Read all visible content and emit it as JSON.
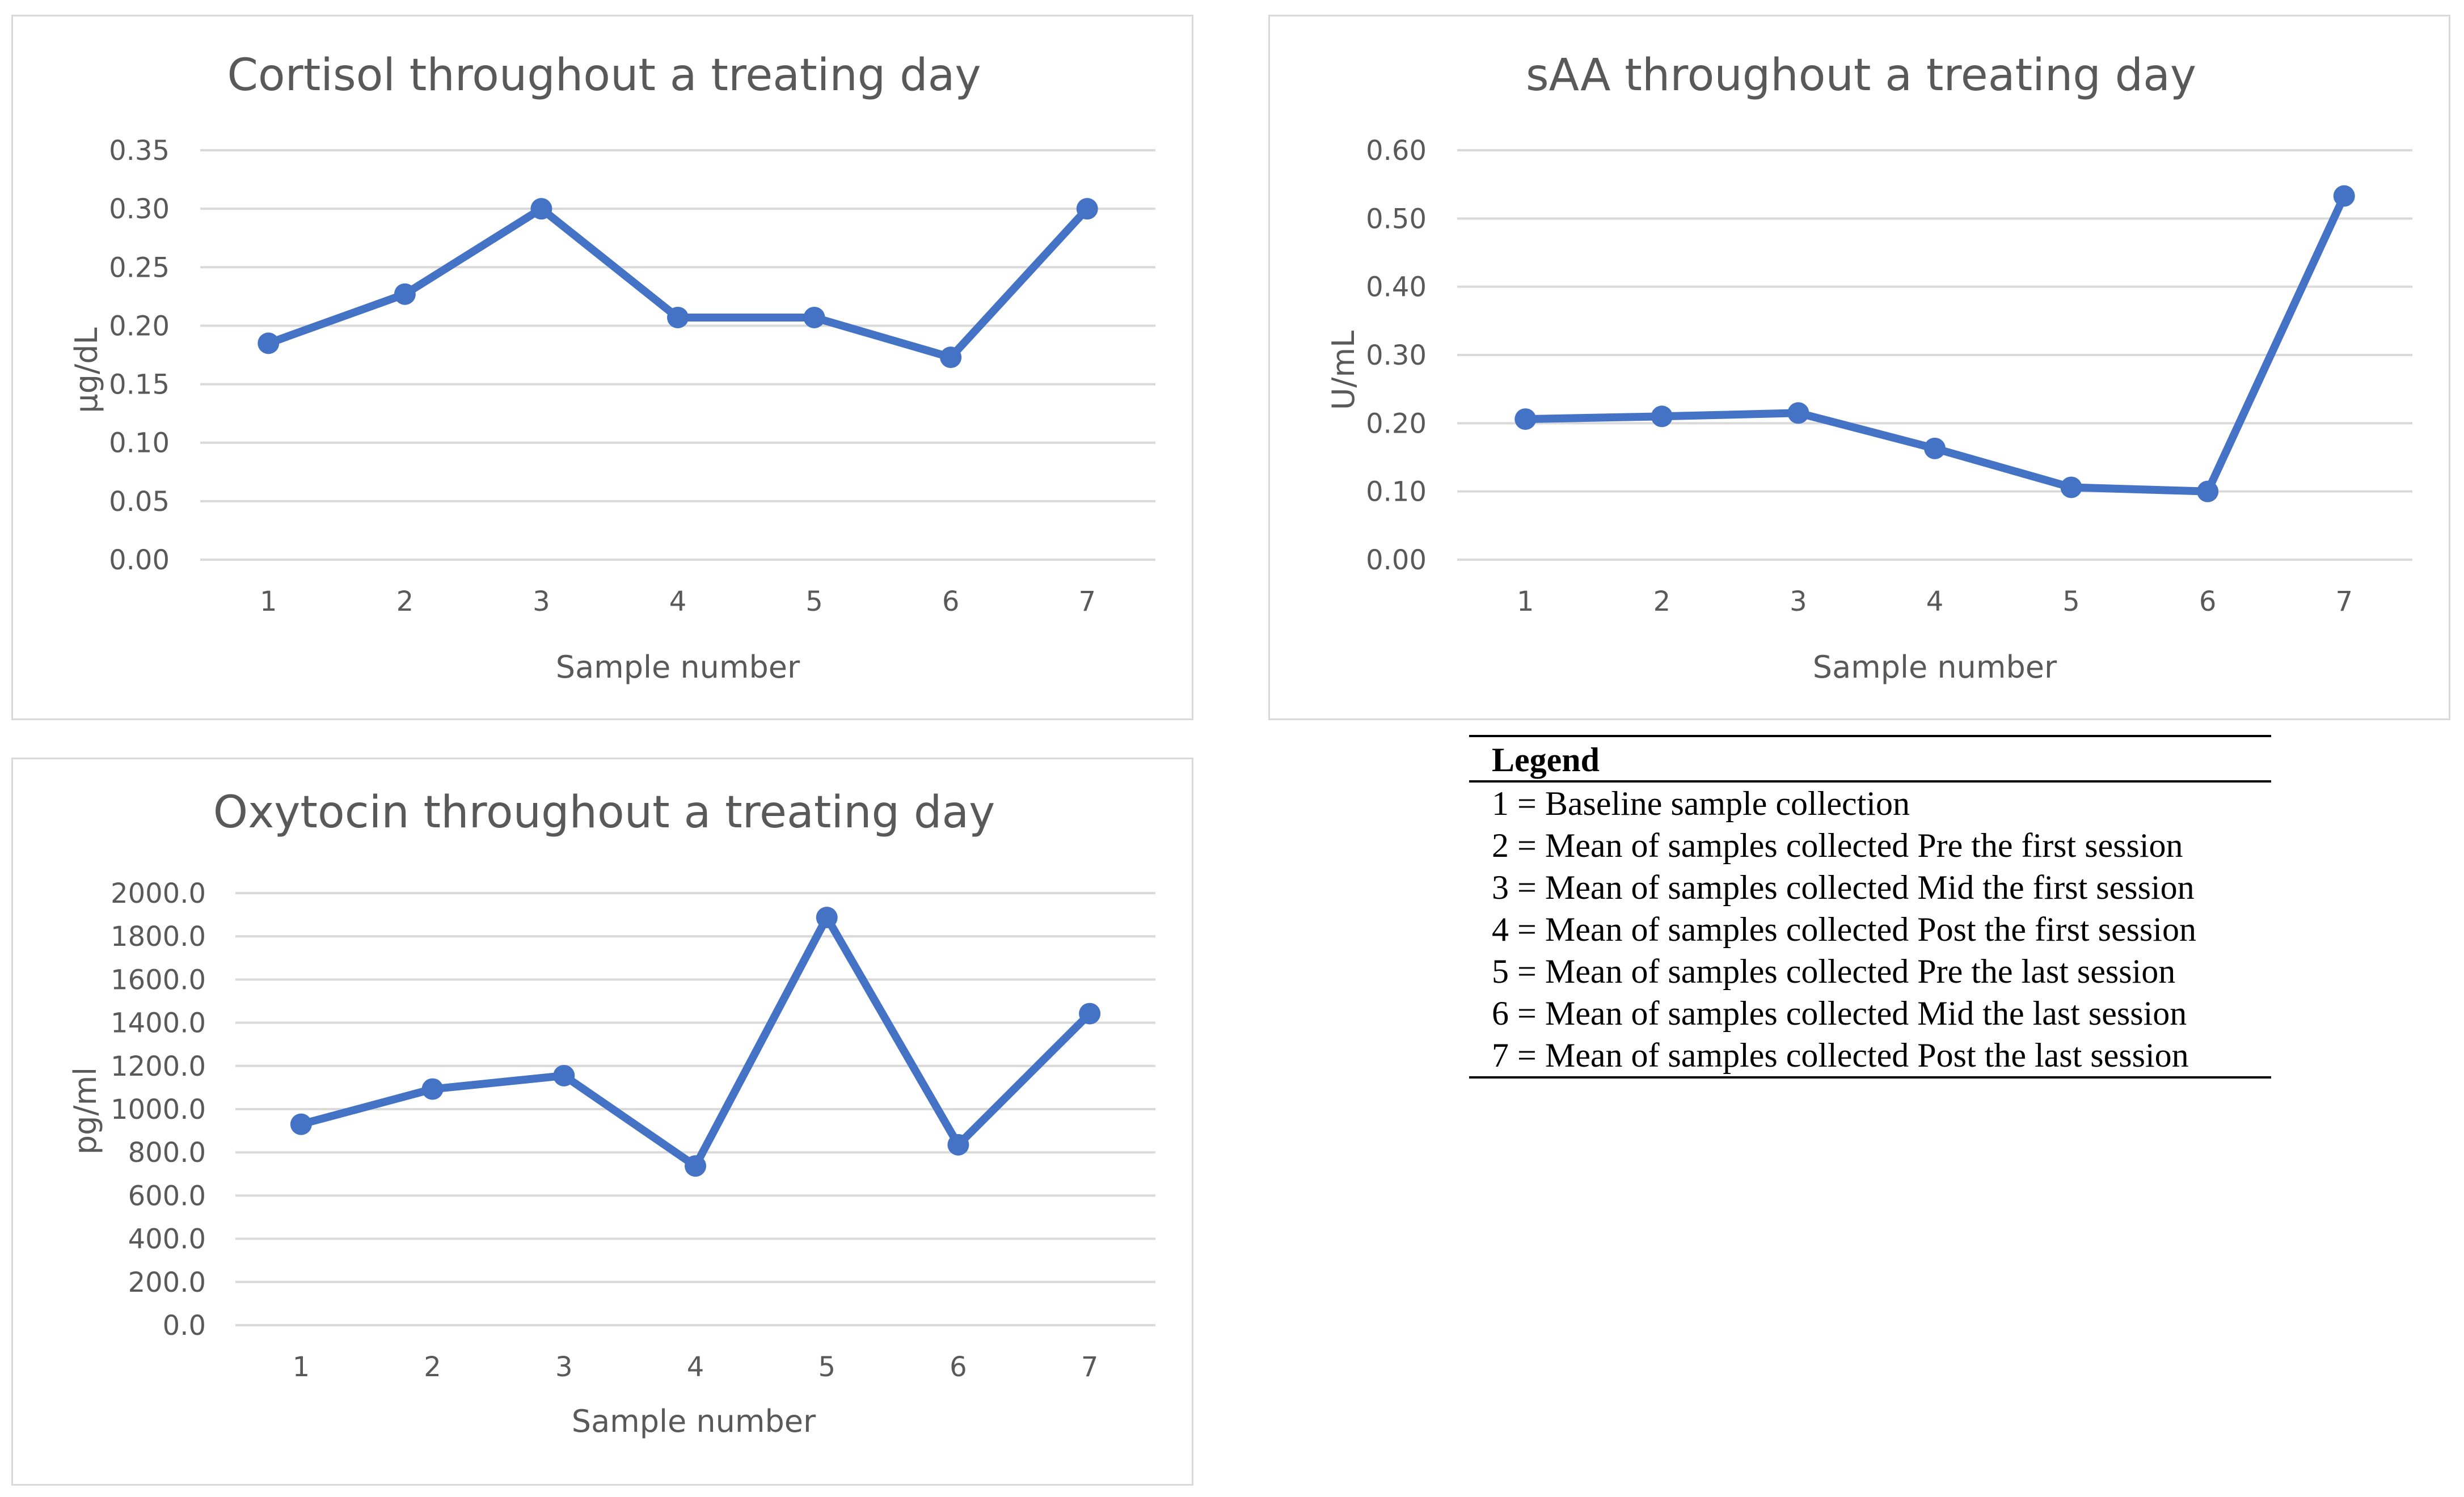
{
  "legend": {
    "heading": "Legend",
    "items": [
      "1 = Baseline sample collection",
      "2 = Mean of samples collected Pre the first session",
      "3 = Mean of samples collected Mid the first session",
      "4 = Mean of samples collected Post the first session",
      "5 = Mean of samples collected Pre the last session",
      "6 = Mean of samples collected Mid the last session",
      "7 = Mean of samples collected Post the last session"
    ]
  },
  "colors": {
    "series": "#4472c4",
    "grid": "#d9d9d9",
    "text": "#595959"
  },
  "chart_data": [
    {
      "id": "cortisol",
      "type": "line",
      "title": "Cortisol throughout a treating day",
      "xlabel": "Sample number",
      "ylabel": "µg/dL",
      "categories": [
        "1",
        "2",
        "3",
        "4",
        "5",
        "6",
        "7"
      ],
      "values": [
        0.185,
        0.227,
        0.3,
        0.207,
        0.207,
        0.173,
        0.3
      ],
      "ylim": [
        0,
        0.35
      ],
      "yticks": [
        "0.00",
        "0.05",
        "0.10",
        "0.15",
        "0.20",
        "0.25",
        "0.30",
        "0.35"
      ],
      "grid": true,
      "legend": "none"
    },
    {
      "id": "saa",
      "type": "line",
      "title": "sAA throughout a treating day",
      "xlabel": "Sample number",
      "ylabel": "U/mL",
      "categories": [
        "1",
        "2",
        "3",
        "4",
        "5",
        "6",
        "7"
      ],
      "values": [
        0.206,
        0.21,
        0.215,
        0.163,
        0.106,
        0.1,
        0.533
      ],
      "ylim": [
        0,
        0.6
      ],
      "yticks": [
        "0.00",
        "0.10",
        "0.20",
        "0.30",
        "0.40",
        "0.50",
        "0.60"
      ],
      "grid": true,
      "legend": "none"
    },
    {
      "id": "oxytocin",
      "type": "line",
      "title": "Oxytocin throughout a treating day",
      "xlabel": "Sample number",
      "ylabel": "pg/ml",
      "categories": [
        "1",
        "2",
        "3",
        "4",
        "5",
        "6",
        "7"
      ],
      "values": [
        930,
        1093,
        1155,
        737,
        1887,
        835,
        1442
      ],
      "ylim": [
        0,
        2000
      ],
      "yticks": [
        "0.0",
        "200.0",
        "400.0",
        "600.0",
        "800.0",
        "1000.0",
        "1200.0",
        "1400.0",
        "1600.0",
        "1800.0",
        "2000.0"
      ],
      "grid": true,
      "legend": "none"
    }
  ]
}
